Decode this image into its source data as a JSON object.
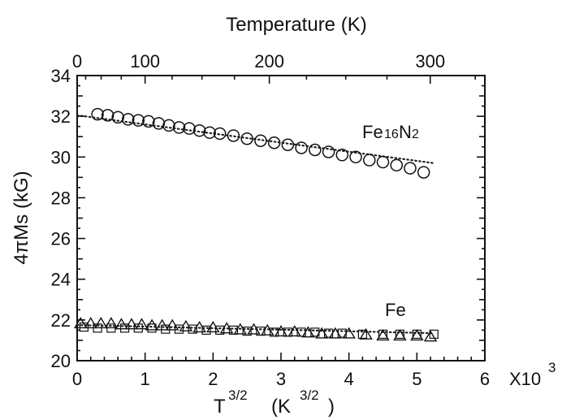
{
  "chart_data": {
    "type": "scatter",
    "xlabel_main": "T",
    "xlabel_exp": "3/2",
    "xlabel_unit_open": "(K",
    "xlabel_unit_exp": "3/2",
    "xlabel_unit_close": ")",
    "x_multiplier": "X10",
    "x_multiplier_exp": "3",
    "ylabel": "4πMs (kG)",
    "top_axis_label": "Temperature (K)",
    "xlim": [
      0,
      6
    ],
    "ylim": [
      20,
      34
    ],
    "x_ticks": [
      "0",
      "1",
      "2",
      "3",
      "4",
      "5",
      "6"
    ],
    "y_ticks": [
      "20",
      "22",
      "24",
      "26",
      "28",
      "30",
      "32",
      "34"
    ],
    "top_ticks": [
      "0",
      "100",
      "200",
      "300"
    ],
    "top_tick_temps": [
      0,
      100,
      200,
      300
    ],
    "series": [
      {
        "name": "Fe16N2",
        "label_main": "Fe",
        "label_sub": "16",
        "label_main2": "N",
        "label_sub2": "2",
        "marker": "circle",
        "x": [
          0.3,
          0.45,
          0.6,
          0.75,
          0.9,
          1.05,
          1.2,
          1.35,
          1.5,
          1.65,
          1.8,
          1.95,
          2.1,
          2.3,
          2.5,
          2.7,
          2.9,
          3.1,
          3.3,
          3.5,
          3.7,
          3.9,
          4.1,
          4.3,
          4.5,
          4.7,
          4.9,
          5.1
        ],
        "y": [
          32.1,
          32.05,
          31.95,
          31.85,
          31.8,
          31.75,
          31.65,
          31.55,
          31.45,
          31.4,
          31.3,
          31.2,
          31.15,
          31.05,
          30.9,
          30.8,
          30.7,
          30.6,
          30.45,
          30.35,
          30.25,
          30.1,
          30.0,
          29.85,
          29.75,
          29.6,
          29.45,
          29.25
        ],
        "fit": {
          "x": [
            0,
            5.25
          ],
          "y": [
            32.05,
            29.7
          ]
        }
      },
      {
        "name": "Fe",
        "label_main": "Fe",
        "marker": "triangle",
        "x": [
          0.05,
          0.2,
          0.35,
          0.5,
          0.65,
          0.8,
          0.95,
          1.1,
          1.25,
          1.4,
          1.6,
          1.8,
          2.0,
          2.2,
          2.4,
          2.6,
          2.8,
          3.0,
          3.2,
          3.4,
          3.6,
          3.8,
          4.0,
          4.25,
          4.5,
          4.75,
          5.0,
          5.2
        ],
        "y": [
          21.8,
          21.8,
          21.8,
          21.8,
          21.75,
          21.75,
          21.75,
          21.7,
          21.7,
          21.7,
          21.65,
          21.6,
          21.6,
          21.55,
          21.5,
          21.5,
          21.45,
          21.4,
          21.4,
          21.35,
          21.3,
          21.3,
          21.3,
          21.25,
          21.2,
          21.2,
          21.2,
          21.15
        ],
        "fit": {
          "x": [
            0,
            5.25
          ],
          "y": [
            21.75,
            21.35
          ]
        }
      },
      {
        "name": "Fe (squares)",
        "marker": "square",
        "x": [
          0.1,
          0.3,
          0.5,
          0.7,
          0.9,
          1.1,
          1.3,
          1.5,
          1.7,
          1.9,
          2.1,
          2.3,
          2.5,
          2.7,
          2.9,
          3.1,
          3.3,
          3.5,
          3.7,
          3.9,
          4.2,
          4.5,
          4.75,
          5.0,
          5.25
        ],
        "y": [
          21.65,
          21.6,
          21.6,
          21.6,
          21.6,
          21.6,
          21.55,
          21.55,
          21.55,
          21.5,
          21.5,
          21.5,
          21.45,
          21.45,
          21.4,
          21.4,
          21.4,
          21.4,
          21.35,
          21.35,
          21.3,
          21.3,
          21.3,
          21.3,
          21.3
        ]
      }
    ],
    "grid": false,
    "legend": "inline labels"
  }
}
